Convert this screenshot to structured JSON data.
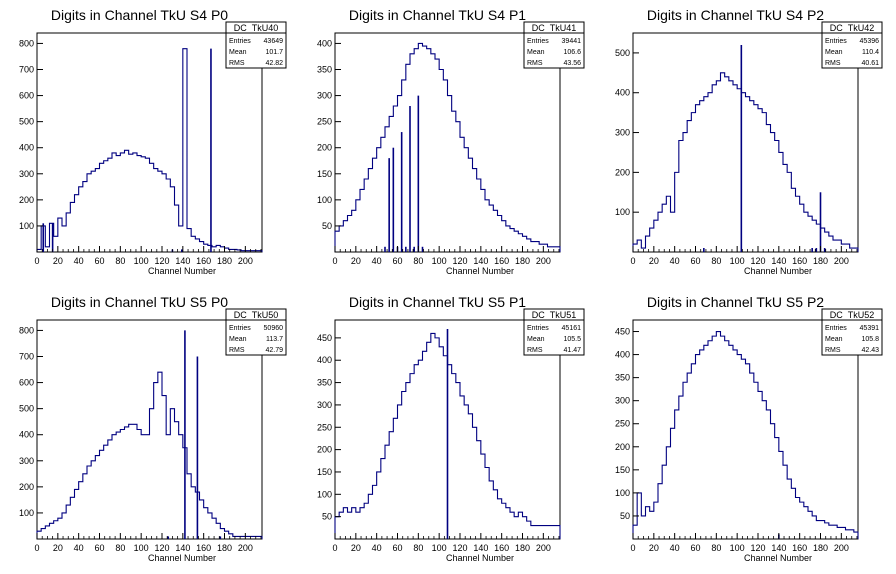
{
  "x_axis_title": "Channel Number",
  "stats_labels": [
    "Entries",
    "Mean",
    "RMS"
  ],
  "line_color": "#000080",
  "x_ticks": [
    0,
    20,
    40,
    60,
    80,
    100,
    120,
    140,
    160,
    180,
    200
  ],
  "chart_data": [
    {
      "type": "histogram",
      "title": "Digits in Channel TkU S4 P0",
      "xlabel": "Channel Number",
      "hist_name": "DC_TkU40",
      "stats": {
        "entries": "43649",
        "mean": "101.7",
        "rms": "42.82"
      },
      "xlim": [
        0,
        216
      ],
      "ylim": [
        0,
        840
      ],
      "y_ticks": [
        100,
        200,
        300,
        400,
        500,
        600,
        700,
        800
      ],
      "bin_width": 4,
      "values": [
        10,
        100,
        20,
        110,
        60,
        130,
        100,
        150,
        190,
        220,
        250,
        270,
        300,
        310,
        320,
        340,
        350,
        360,
        380,
        370,
        380,
        390,
        375,
        380,
        370,
        365,
        360,
        340,
        320,
        310,
        300,
        280,
        250,
        180,
        100,
        780,
        90,
        60,
        50,
        40,
        30,
        25,
        20,
        25,
        20,
        15,
        10,
        10,
        8,
        5,
        5,
        5,
        5,
        5
      ],
      "spikes": [
        [
          6,
          110
        ],
        [
          15,
          110
        ],
        [
          130,
          10
        ],
        [
          139,
          10
        ],
        [
          167,
          780
        ]
      ]
    },
    {
      "type": "histogram",
      "title": "Digits in Channel TkU S4 P1",
      "xlabel": "Channel Number",
      "hist_name": "DC_TkU41",
      "stats": {
        "entries": "39441",
        "mean": "106.6",
        "rms": "43.56"
      },
      "xlim": [
        0,
        216
      ],
      "ylim": [
        0,
        420
      ],
      "y_ticks": [
        50,
        100,
        150,
        200,
        250,
        300,
        350,
        400
      ],
      "bin_width": 4,
      "values": [
        40,
        50,
        60,
        70,
        80,
        100,
        120,
        140,
        160,
        180,
        200,
        220,
        240,
        260,
        280,
        300,
        330,
        360,
        380,
        390,
        400,
        395,
        390,
        380,
        370,
        350,
        330,
        300,
        270,
        250,
        220,
        200,
        180,
        160,
        140,
        120,
        100,
        90,
        80,
        70,
        60,
        50,
        45,
        40,
        35,
        30,
        25,
        20,
        20,
        15,
        15,
        10,
        10,
        10
      ],
      "spikes": [
        [
          48,
          10
        ],
        [
          52,
          180
        ],
        [
          56,
          200
        ],
        [
          60,
          10
        ],
        [
          64,
          230
        ],
        [
          68,
          10
        ],
        [
          72,
          280
        ],
        [
          76,
          10
        ],
        [
          80,
          300
        ],
        [
          84,
          10
        ]
      ]
    },
    {
      "type": "histogram",
      "title": "Digits in Channel TkU S4 P2",
      "xlabel": "Channel Number",
      "hist_name": "DC_TkU42",
      "stats": {
        "entries": "45396",
        "mean": "110.4",
        "rms": "40.61"
      },
      "xlim": [
        0,
        216
      ],
      "ylim": [
        0,
        550
      ],
      "y_ticks": [
        100,
        200,
        300,
        400,
        500
      ],
      "bin_width": 4,
      "values": [
        20,
        30,
        10,
        40,
        60,
        80,
        100,
        120,
        140,
        100,
        200,
        280,
        300,
        330,
        350,
        370,
        380,
        390,
        400,
        420,
        430,
        450,
        440,
        430,
        420,
        410,
        400,
        390,
        380,
        370,
        360,
        350,
        320,
        300,
        280,
        250,
        220,
        200,
        160,
        140,
        120,
        100,
        90,
        80,
        70,
        60,
        50,
        40,
        30,
        30,
        20,
        20,
        10,
        10
      ],
      "spikes": [
        [
          68,
          10
        ],
        [
          104,
          520
        ],
        [
          172,
          10
        ],
        [
          176,
          10
        ],
        [
          180,
          150
        ],
        [
          184,
          10
        ]
      ]
    },
    {
      "type": "histogram",
      "title": "Digits in Channel TkU S5 P0",
      "xlabel": "Channel Number",
      "hist_name": "DC_TkU50",
      "stats": {
        "entries": "50960",
        "mean": "113.7",
        "rms": "42.79"
      },
      "xlim": [
        0,
        216
      ],
      "ylim": [
        0,
        840
      ],
      "y_ticks": [
        100,
        200,
        300,
        400,
        500,
        600,
        700,
        800
      ],
      "bin_width": 4,
      "values": [
        30,
        40,
        50,
        60,
        70,
        80,
        100,
        130,
        160,
        190,
        220,
        250,
        280,
        300,
        320,
        340,
        360,
        380,
        400,
        410,
        420,
        430,
        440,
        440,
        420,
        400,
        400,
        500,
        600,
        640,
        550,
        400,
        500,
        450,
        400,
        350,
        250,
        200,
        180,
        150,
        120,
        100,
        80,
        60,
        40,
        30,
        20,
        10,
        10,
        10,
        10,
        10,
        10,
        10
      ],
      "spikes": [
        [
          126,
          10
        ],
        [
          142,
          800
        ],
        [
          154,
          700
        ],
        [
          176,
          10
        ]
      ]
    },
    {
      "type": "histogram",
      "title": "Digits in Channel TkU S5 P1",
      "xlabel": "Channel Number",
      "hist_name": "DC_TkU51",
      "stats": {
        "entries": "45161",
        "mean": "105.5",
        "rms": "41.47"
      },
      "xlim": [
        0,
        216
      ],
      "ylim": [
        0,
        490
      ],
      "y_ticks": [
        50,
        100,
        150,
        200,
        250,
        300,
        350,
        400,
        450
      ],
      "bin_width": 4,
      "values": [
        50,
        60,
        70,
        60,
        70,
        60,
        70,
        80,
        100,
        120,
        150,
        180,
        210,
        240,
        270,
        300,
        330,
        350,
        370,
        390,
        400,
        420,
        440,
        460,
        450,
        430,
        410,
        390,
        370,
        350,
        320,
        300,
        280,
        250,
        220,
        190,
        160,
        130,
        110,
        90,
        80,
        70,
        60,
        50,
        60,
        50,
        40,
        30,
        30,
        30,
        30,
        30,
        30,
        30
      ],
      "spikes": [
        [
          108,
          470
        ]
      ]
    },
    {
      "type": "histogram",
      "title": "Digits in Channel TkU S5 P2",
      "xlabel": "Channel Number",
      "hist_name": "DC_TkU52",
      "stats": {
        "entries": "45391",
        "mean": "105.8",
        "rms": "42.43"
      },
      "xlim": [
        0,
        216
      ],
      "ylim": [
        0,
        475
      ],
      "y_ticks": [
        50,
        100,
        150,
        200,
        250,
        300,
        350,
        400,
        450
      ],
      "bin_width": 4,
      "values": [
        30,
        100,
        50,
        70,
        60,
        80,
        120,
        160,
        200,
        240,
        280,
        310,
        340,
        360,
        380,
        400,
        410,
        420,
        430,
        440,
        450,
        440,
        430,
        420,
        410,
        400,
        390,
        380,
        360,
        340,
        320,
        300,
        280,
        250,
        220,
        190,
        160,
        130,
        110,
        90,
        80,
        70,
        60,
        50,
        40,
        40,
        35,
        30,
        30,
        25,
        25,
        20,
        20,
        15
      ],
      "spikes": [
        [
          140,
          10
        ]
      ]
    }
  ]
}
